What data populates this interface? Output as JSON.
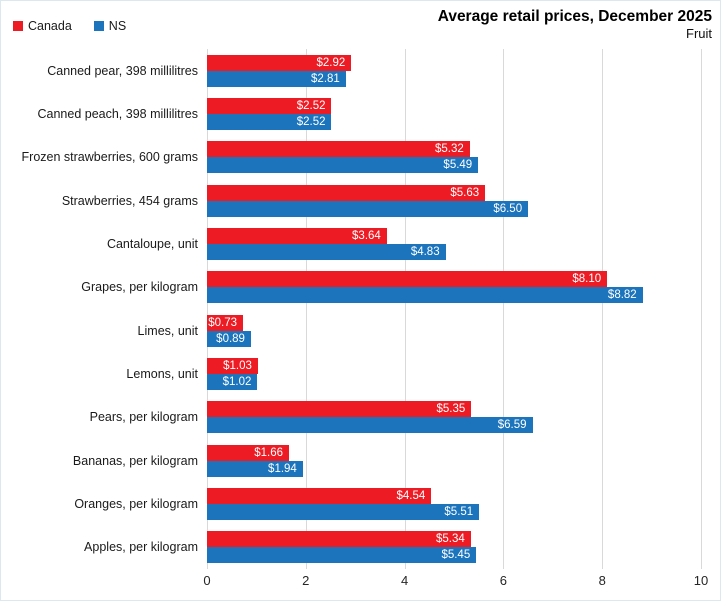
{
  "header": {
    "title": "Average retail prices, December 2025",
    "subtitle": "Fruit"
  },
  "legend": [
    {
      "label": "Canada",
      "color": "#ed1c24"
    },
    {
      "label": "NS",
      "color": "#1b74bc"
    }
  ],
  "chart_data": {
    "type": "bar",
    "orientation": "horizontal",
    "title": "Average retail prices, December 2025",
    "subtitle": "Fruit",
    "categories": [
      "Canned pear, 398 millilitres",
      "Canned peach, 398 millilitres",
      "Frozen strawberries, 600 grams",
      "Strawberries, 454 grams",
      "Cantaloupe, unit",
      "Grapes, per kilogram",
      "Limes, unit",
      "Lemons, unit",
      "Pears, per kilogram",
      "Bananas, per kilogram",
      "Oranges, per kilogram",
      "Apples, per kilogram"
    ],
    "series": [
      {
        "name": "Canada",
        "color": "#ed1c24",
        "values": [
          2.92,
          2.52,
          5.32,
          5.63,
          3.64,
          8.1,
          0.73,
          1.03,
          5.35,
          1.66,
          4.54,
          5.34
        ]
      },
      {
        "name": "NS",
        "color": "#1b74bc",
        "values": [
          2.81,
          2.52,
          5.49,
          6.5,
          4.83,
          8.82,
          0.89,
          1.02,
          6.59,
          1.94,
          5.51,
          5.45
        ]
      }
    ],
    "value_prefix": "$",
    "value_decimals": 2,
    "xlim": [
      0,
      10
    ],
    "xticks": [
      0,
      2,
      4,
      6,
      8,
      10
    ],
    "grid": true,
    "gridline_color": "#d9d9d9",
    "legend_position": "top-left"
  }
}
